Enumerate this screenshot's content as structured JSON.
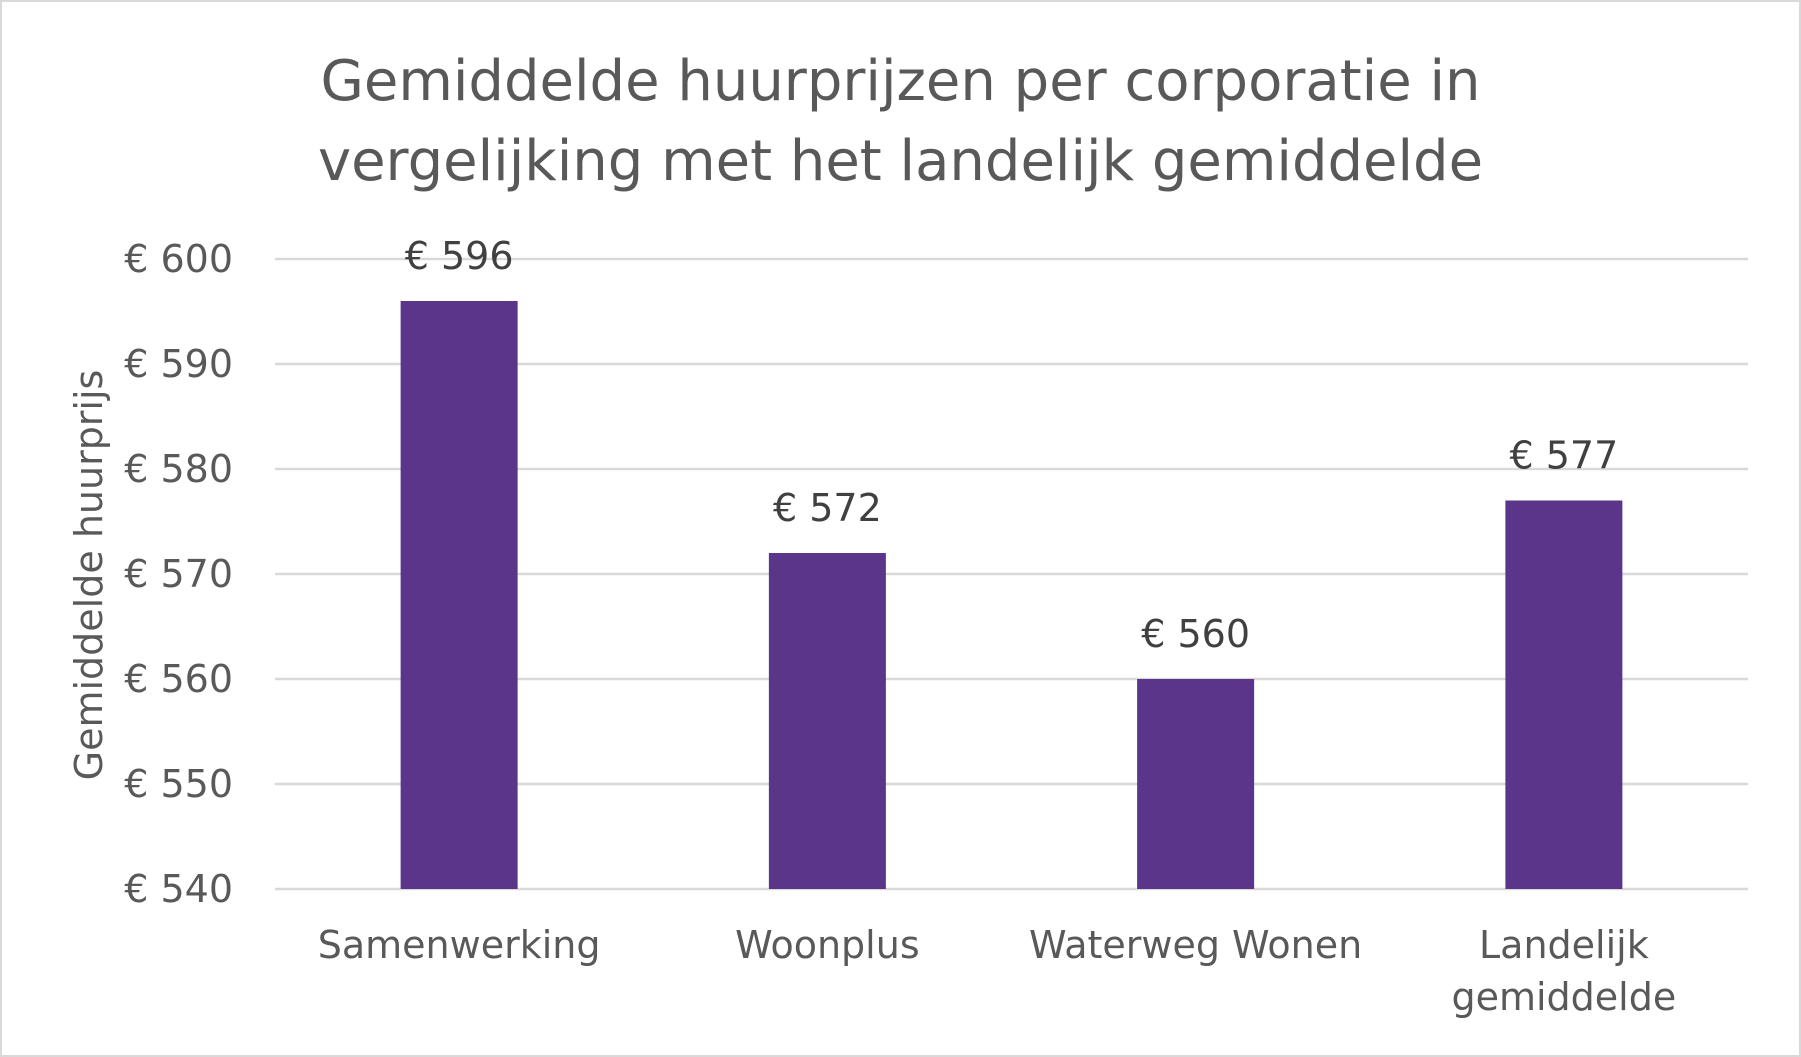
{
  "chart_data": {
    "type": "bar",
    "title_lines": [
      "Gemiddelde huurprijzen per corporatie in",
      "vergelijking met het landelijk gemiddelde"
    ],
    "xlabel": "",
    "ylabel": "Gemiddelde huurprijs",
    "categories": [
      [
        "Samenwerking"
      ],
      [
        "Woonplus"
      ],
      [
        "Waterweg Wonen"
      ],
      [
        "Landelijk",
        "gemiddelde"
      ]
    ],
    "values": [
      596,
      572,
      560,
      577
    ],
    "data_labels": [
      "€ 596",
      "€ 572",
      "€ 560",
      "€ 577"
    ],
    "ylim": [
      540,
      600
    ],
    "yticks": [
      540,
      550,
      560,
      570,
      580,
      590,
      600
    ],
    "ytick_labels": [
      "€ 540",
      "€ 550",
      "€ 560",
      "€ 570",
      "€ 580",
      "€ 590",
      "€ 600"
    ],
    "grid": true,
    "legend": "none",
    "bar_color": "#5a3589",
    "grid_color": "#d9d9d9"
  }
}
